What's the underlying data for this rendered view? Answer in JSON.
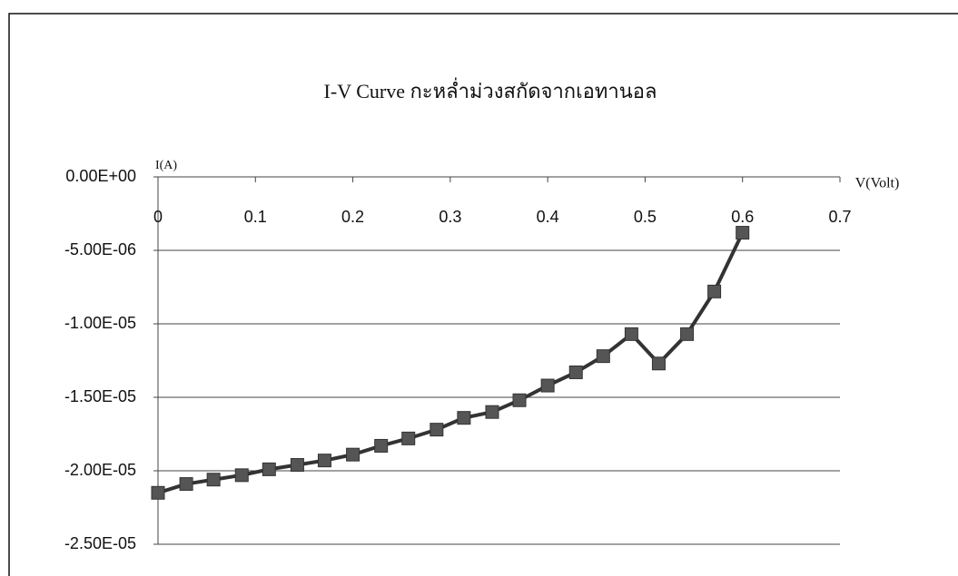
{
  "chart_data": {
    "type": "line",
    "title": "I-V Curve กะหล่ำม่วงสกัดจากเอทานอล",
    "x_label": "V(Volt)",
    "y_label": "I(A)",
    "x": [
      0,
      0.029,
      0.057,
      0.086,
      0.114,
      0.143,
      0.171,
      0.2,
      0.229,
      0.257,
      0.286,
      0.314,
      0.343,
      0.371,
      0.4,
      0.429,
      0.457,
      0.486,
      0.514,
      0.543,
      0.571,
      0.6
    ],
    "series": [
      {
        "name": "I-V",
        "color": "#333333",
        "values": [
          -2.15e-05,
          -2.09e-05,
          -2.06e-05,
          -2.03e-05,
          -1.99e-05,
          -1.96e-05,
          -1.93e-05,
          -1.89e-05,
          -1.83e-05,
          -1.78e-05,
          -1.72e-05,
          -1.64e-05,
          -1.6e-05,
          -1.52e-05,
          -1.42e-05,
          -1.33e-05,
          -1.22e-05,
          -1.07e-05,
          -1.27e-05,
          -1.07e-05,
          -7.8e-06,
          -3.8e-06
        ]
      }
    ],
    "xlim": [
      0,
      0.7
    ],
    "xticks": [
      0,
      0.1,
      0.2,
      0.3,
      0.4,
      0.5,
      0.6,
      0.7
    ],
    "ylim": [
      -2.5e-05,
      0
    ],
    "yticks": [
      {
        "value": 0,
        "label": "0.00E+00"
      },
      {
        "value": -5e-06,
        "label": "-5.00E-06"
      },
      {
        "value": -1e-05,
        "label": "-1.00E-05"
      },
      {
        "value": -1.5e-05,
        "label": "-1.50E-05"
      },
      {
        "value": -2e-05,
        "label": "-2.00E-05"
      },
      {
        "value": -2.5e-05,
        "label": "-2.50E-05"
      }
    ],
    "grid": true
  }
}
